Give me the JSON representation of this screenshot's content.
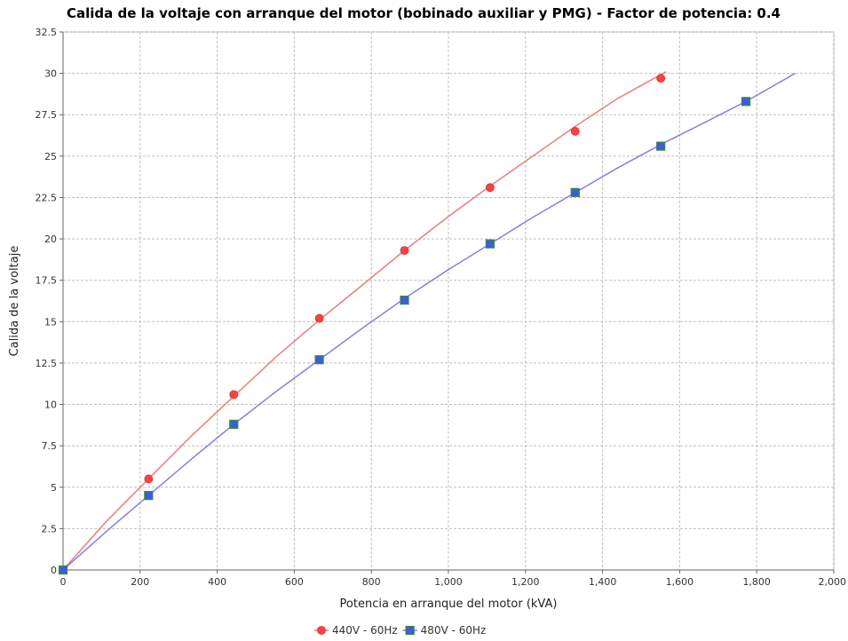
{
  "chart_data": {
    "type": "scatter",
    "title": "Calida de la voltaje con arranque del motor (bobinado auxiliar y PMG) - Factor de potencia: 0.4",
    "xlabel": "Potencia en arranque del motor (kVA)",
    "ylabel": "Calida de la voltaje",
    "xlim": [
      0,
      2000
    ],
    "ylim": [
      0,
      32.5
    ],
    "x_ticks": [
      0,
      200,
      400,
      600,
      800,
      1000,
      1200,
      1400,
      1600,
      1800,
      2000
    ],
    "x_tick_labels": [
      "0",
      "200",
      "400",
      "600",
      "800",
      "1,000",
      "1,200",
      "1,400",
      "1,600",
      "1,800",
      "2,000"
    ],
    "y_ticks": [
      0,
      2.5,
      5,
      7.5,
      10,
      12.5,
      15,
      17.5,
      20,
      22.5,
      25,
      27.5,
      30,
      32.5
    ],
    "y_tick_labels": [
      "0",
      "2.5",
      "5",
      "7.5",
      "10",
      "12.5",
      "15",
      "17.5",
      "20",
      "22.5",
      "25",
      "27.5",
      "30",
      "32.5"
    ],
    "grid": true,
    "legend_position": "bottom",
    "series": [
      {
        "name": "440V - 60Hz",
        "color": "#ff4040",
        "line_color": "#ff7070",
        "marker": "circle",
        "points": [
          {
            "x": 0,
            "y": 0
          },
          {
            "x": 222,
            "y": 5.5
          },
          {
            "x": 443,
            "y": 10.6
          },
          {
            "x": 665,
            "y": 15.2
          },
          {
            "x": 886,
            "y": 19.3
          },
          {
            "x": 1108,
            "y": 23.1
          },
          {
            "x": 1329,
            "y": 26.5
          },
          {
            "x": 1551,
            "y": 29.7
          }
        ],
        "fit": [
          {
            "x": 0,
            "y": 0
          },
          {
            "x": 111,
            "y": 2.9
          },
          {
            "x": 222,
            "y": 5.5
          },
          {
            "x": 333,
            "y": 8.1
          },
          {
            "x": 443,
            "y": 10.5
          },
          {
            "x": 554,
            "y": 12.9
          },
          {
            "x": 665,
            "y": 15.1
          },
          {
            "x": 776,
            "y": 17.2
          },
          {
            "x": 886,
            "y": 19.3
          },
          {
            "x": 997,
            "y": 21.3
          },
          {
            "x": 1108,
            "y": 23.2
          },
          {
            "x": 1219,
            "y": 25.0
          },
          {
            "x": 1329,
            "y": 26.8
          },
          {
            "x": 1440,
            "y": 28.5
          },
          {
            "x": 1565,
            "y": 30.1
          }
        ]
      },
      {
        "name": "480V - 60Hz",
        "color": "#2255dd",
        "line_color": "#7777ff",
        "marker": "square",
        "marker_fill": "#3a5fd8",
        "marker_stroke": "#3a8a3a",
        "points": [
          {
            "x": 0,
            "y": 0
          },
          {
            "x": 222,
            "y": 4.5
          },
          {
            "x": 443,
            "y": 8.8
          },
          {
            "x": 665,
            "y": 12.7
          },
          {
            "x": 886,
            "y": 16.3
          },
          {
            "x": 1108,
            "y": 19.7
          },
          {
            "x": 1329,
            "y": 22.8
          },
          {
            "x": 1551,
            "y": 25.6
          },
          {
            "x": 1772,
            "y": 28.3
          }
        ],
        "fit": [
          {
            "x": 0,
            "y": 0
          },
          {
            "x": 111,
            "y": 2.3
          },
          {
            "x": 222,
            "y": 4.5
          },
          {
            "x": 333,
            "y": 6.7
          },
          {
            "x": 443,
            "y": 8.8
          },
          {
            "x": 554,
            "y": 10.8
          },
          {
            "x": 665,
            "y": 12.7
          },
          {
            "x": 776,
            "y": 14.6
          },
          {
            "x": 886,
            "y": 16.4
          },
          {
            "x": 997,
            "y": 18.1
          },
          {
            "x": 1108,
            "y": 19.7
          },
          {
            "x": 1219,
            "y": 21.3
          },
          {
            "x": 1329,
            "y": 22.8
          },
          {
            "x": 1440,
            "y": 24.3
          },
          {
            "x": 1551,
            "y": 25.7
          },
          {
            "x": 1662,
            "y": 27.0
          },
          {
            "x": 1772,
            "y": 28.3
          },
          {
            "x": 1900,
            "y": 30.0
          }
        ]
      }
    ]
  }
}
